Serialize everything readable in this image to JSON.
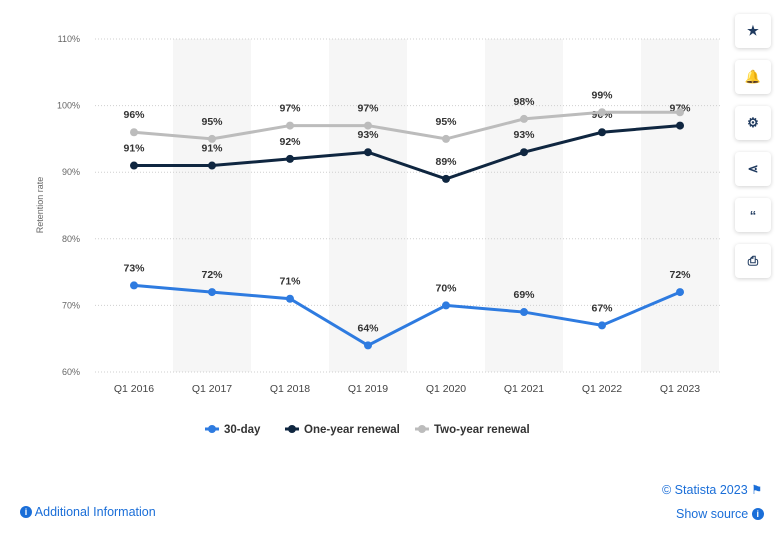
{
  "chart_data": {
    "type": "line",
    "categories": [
      "Q1 2016",
      "Q1 2017",
      "Q1 2018",
      "Q1 2019",
      "Q1 2020",
      "Q1 2021",
      "Q1 2022",
      "Q1 2023"
    ],
    "ylabel": "Retention rate",
    "ylim": [
      60,
      110
    ],
    "yticks": [
      "60%",
      "70%",
      "80%",
      "90%",
      "100%",
      "110%"
    ],
    "grid": true,
    "legend": "bottom",
    "series": [
      {
        "name": "30-day",
        "color": "#2e7be0",
        "values": [
          73,
          72,
          71,
          64,
          70,
          69,
          67,
          72
        ],
        "labels": [
          "73%",
          "72%",
          "71%",
          "64%",
          "70%",
          "69%",
          "67%",
          "72%"
        ]
      },
      {
        "name": "One-year renewal",
        "color": "#0f2640",
        "values": [
          91,
          91,
          92,
          93,
          89,
          93,
          96,
          97
        ],
        "labels": [
          "91%",
          "91%",
          "92%",
          "93%",
          "89%",
          "93%",
          "96%",
          "97%"
        ]
      },
      {
        "name": "Two-year renewal",
        "color": "#bcbcbc",
        "values": [
          96,
          95,
          97,
          97,
          95,
          98,
          99,
          99
        ],
        "labels": [
          "96%",
          "95%",
          "97%",
          "97%",
          "95%",
          "98%",
          "99%",
          null
        ]
      }
    ]
  },
  "sidebar": {
    "buttons": [
      {
        "name": "star",
        "glyph": "★"
      },
      {
        "name": "bell",
        "glyph": "🔔"
      },
      {
        "name": "gear",
        "glyph": "⚙"
      },
      {
        "name": "share",
        "glyph": "⋖"
      },
      {
        "name": "quote",
        "glyph": "“"
      },
      {
        "name": "print",
        "glyph": "⎙"
      }
    ]
  },
  "footer": {
    "additional_info": "Additional Information",
    "copyright": "© Statista 2023",
    "show_source": "Show source"
  }
}
